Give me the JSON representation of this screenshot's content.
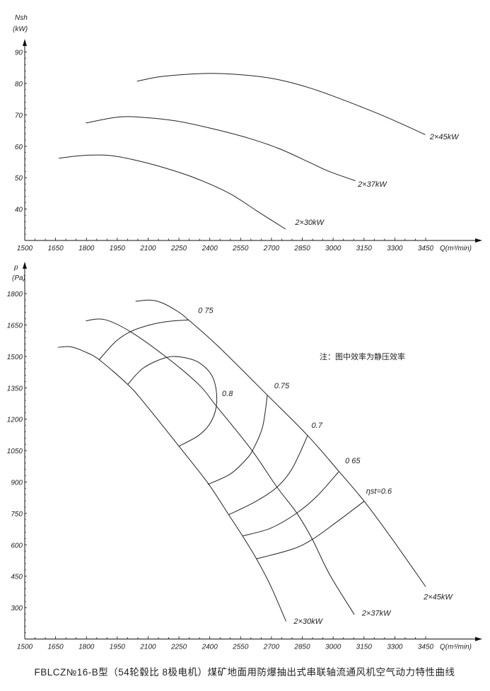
{
  "chart_data": [
    {
      "type": "line",
      "ylabel": "Nsh",
      "yunit": "(kW)",
      "xlabel": "Q(m³/min)",
      "xlim": [
        1500,
        3450
      ],
      "ylim": [
        30,
        90
      ],
      "xticks": [
        "1500",
        "1650",
        "1800",
        "1950",
        "2100",
        "2250",
        "2400",
        "2550",
        "2700",
        "2850",
        "3000",
        "3150",
        "3300",
        "3450"
      ],
      "yticks": [
        "90",
        "80",
        "70",
        "60",
        "50",
        "40"
      ],
      "grid": false,
      "series": [
        {
          "name": "2×45kW",
          "label_at": [
            3540,
            62.2
          ],
          "x": [
            2046,
            2151,
            2287,
            2407,
            2528,
            2664,
            2769,
            2890,
            2995,
            3146,
            3297,
            3448
          ],
          "y": [
            80.7,
            82.1,
            82.9,
            83.2,
            82.9,
            82.0,
            80.7,
            78.5,
            76.1,
            72.3,
            68.2,
            63.7
          ]
        },
        {
          "name": "2×37kW",
          "label_at": [
            3190,
            47.1
          ],
          "x": [
            1797,
            1955,
            2076,
            2242,
            2407,
            2588,
            2739,
            2890,
            2980,
            3108
          ],
          "y": [
            67.4,
            69.3,
            69.2,
            68.0,
            65.7,
            62.6,
            59.2,
            54.7,
            52.0,
            49.0
          ]
        },
        {
          "name": "2×30kW",
          "label_at": [
            2885,
            34.9
          ],
          "x": [
            1666,
            1789,
            1910,
            2016,
            2166,
            2332,
            2498,
            2634,
            2769
          ],
          "y": [
            56.2,
            57.1,
            57.1,
            55.9,
            53.4,
            49.8,
            44.9,
            39.2,
            33.6
          ]
        }
      ]
    },
    {
      "type": "line",
      "ylabel": "p",
      "yunit": "(Pa)",
      "xlabel": "Q(m³/min)",
      "xlim": [
        1500,
        3450
      ],
      "ylim": [
        150,
        1800
      ],
      "xticks": [
        "1500",
        "1650",
        "1800",
        "1950",
        "2100",
        "2250",
        "2400",
        "2550",
        "2700",
        "2850",
        "3000",
        "3150",
        "3300",
        "3450"
      ],
      "yticks": [
        "1800",
        "1650",
        "1500",
        "1350",
        "1200",
        "1050",
        "900",
        "750",
        "600",
        "450",
        "300"
      ],
      "grid": false,
      "note": "注：图中效率为静压效率",
      "series": [
        {
          "name": "2×45kW",
          "label_at": [
            3510,
            340
          ],
          "x": [
            2039,
            2107,
            2167,
            2242,
            2297,
            2439,
            2680,
            2876,
            3027,
            3151,
            3284,
            3450
          ],
          "y": [
            1763,
            1769,
            1756,
            1716,
            1674,
            1550,
            1315,
            1122,
            952,
            808,
            632,
            400
          ]
        },
        {
          "name": "2×37kW",
          "label_at": [
            3210,
            262
          ],
          "x": [
            1797,
            1888,
            2016,
            2197,
            2348,
            2431,
            2605,
            2725,
            2823,
            2899,
            2982,
            3103
          ],
          "y": [
            1670,
            1676,
            1617,
            1490,
            1364,
            1264,
            1051,
            878,
            752,
            626,
            460,
            267
          ]
        },
        {
          "name": "2×30kW",
          "label_at": [
            2878,
            222
          ],
          "x": [
            1661,
            1722,
            1790,
            1862,
            2001,
            2076,
            2250,
            2393,
            2491,
            2559,
            2627,
            2695,
            2771
          ],
          "y": [
            1543,
            1546,
            1523,
            1484,
            1366,
            1284,
            1071,
            892,
            745,
            643,
            533,
            406,
            234
          ]
        }
      ],
      "efficiency_contours": [
        {
          "label": "0 75",
          "label_at": [
            2380,
            1707
          ],
          "x": [
            1862,
            1941,
            2016,
            2107,
            2197,
            2297
          ],
          "y": [
            1484,
            1570,
            1619,
            1650,
            1667,
            1674
          ]
        },
        {
          "label": "0.8",
          "label_at": [
            2486,
            1311
          ],
          "x": [
            2001,
            2076,
            2182,
            2258,
            2348,
            2416,
            2434,
            2408,
            2348,
            2250
          ],
          "y": [
            1366,
            1444,
            1493,
            1497,
            1470,
            1397,
            1284,
            1191,
            1124,
            1071
          ]
        },
        {
          "label": "0.75",
          "label_at": [
            2750,
            1348
          ],
          "x": [
            2390,
            2499,
            2574,
            2612,
            2657,
            2680
          ],
          "y": [
            888,
            938,
            1005,
            1058,
            1164,
            1315
          ]
        },
        {
          "label": "0.7",
          "label_at": [
            2921,
            1158
          ],
          "x": [
            2491,
            2620,
            2725,
            2801,
            2876
          ],
          "y": [
            743,
            805,
            874,
            965,
            1122
          ]
        },
        {
          "label": "0 65",
          "label_at": [
            3095,
            989
          ],
          "x": [
            2559,
            2695,
            2818,
            2921,
            3027
          ],
          "y": [
            642,
            679,
            748,
            832,
            949
          ]
        },
        {
          "label": "ηst=0.6",
          "label_at": [
            3223,
            845
          ],
          "x": [
            2627,
            2801,
            2899,
            3012,
            3151
          ],
          "y": [
            533,
            579,
            626,
            705,
            808
          ]
        }
      ]
    }
  ],
  "caption": "FBLCZ№16-B型（54轮毂比 8极电机）煤矿地面用防爆抽出式串联轴流通风机空气动力特性曲线"
}
